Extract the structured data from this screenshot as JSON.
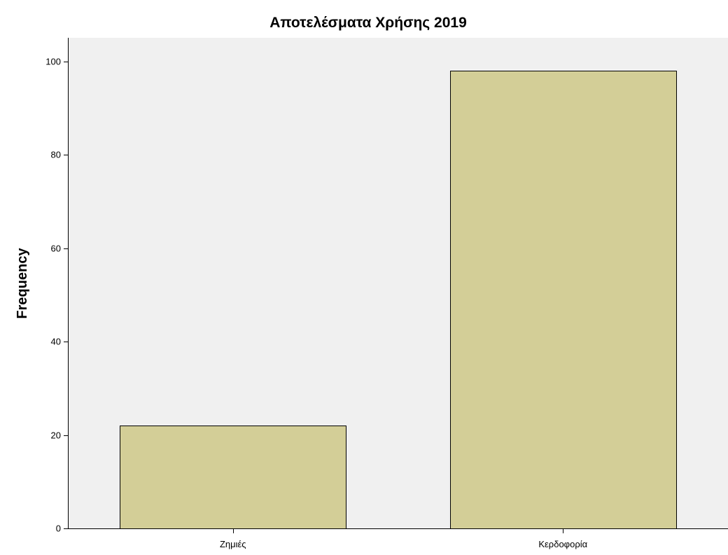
{
  "chart_data": {
    "type": "bar",
    "title": "Αποτελέσματα Χρήσης 2019",
    "xlabel": "",
    "ylabel": "Frequency",
    "categories": [
      "Ζημιές",
      "Κερδοφορία"
    ],
    "values": [
      22,
      98
    ],
    "ylim": [
      0,
      105
    ],
    "yticks": [
      0,
      20,
      40,
      60,
      80,
      100
    ],
    "grid": false,
    "legend": "none",
    "colors": {
      "plot_background": "#f0f0f0",
      "bar_fill": "#d3ce97",
      "bar_stroke": "#000000",
      "axis": "#000000"
    }
  }
}
